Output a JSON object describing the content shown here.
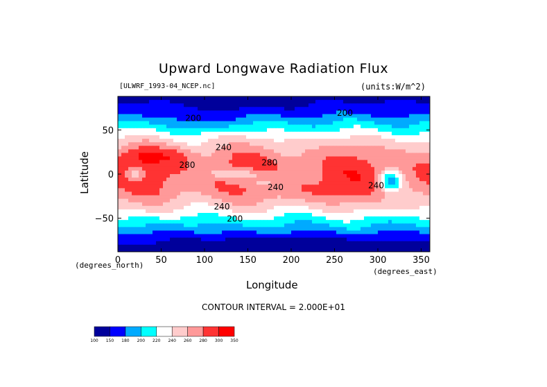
{
  "chart_data": {
    "type": "heatmap",
    "title": "Upward Longwave Radiation Flux",
    "subtitle_left": "[ULWRF_1993-04_NCEP.nc]",
    "subtitle_right": "(units:W/m^2)",
    "xlabel": "Longitude",
    "ylabel": "Latitude",
    "x_units_label": "(degrees_east)",
    "y_units_label": "(degrees_north)",
    "xlim": [
      0,
      360
    ],
    "ylim": [
      -90,
      90
    ],
    "x_ticks": [
      0,
      50,
      100,
      150,
      200,
      250,
      300,
      350
    ],
    "y_ticks": [
      50,
      0,
      -50
    ],
    "contour_interval_text": "CONTOUR INTERVAL = 2.000E+01",
    "contour_labels": [
      {
        "lon": 87,
        "lat": 60,
        "text": "200"
      },
      {
        "lon": 262,
        "lat": 66,
        "text": "200"
      },
      {
        "lon": 122,
        "lat": 27,
        "text": "240"
      },
      {
        "lon": 80,
        "lat": 7,
        "text": "280"
      },
      {
        "lon": 175,
        "lat": 10,
        "text": "280"
      },
      {
        "lon": 182,
        "lat": -18,
        "text": "240"
      },
      {
        "lon": 298,
        "lat": -16,
        "text": "240"
      },
      {
        "lon": 120,
        "lat": -40,
        "text": "240"
      },
      {
        "lon": 135,
        "lat": -54,
        "text": "200"
      }
    ],
    "levels": [
      100,
      150,
      180,
      200,
      220,
      240,
      260,
      280,
      300,
      350
    ],
    "colors": [
      "#00009b",
      "#0000ff",
      "#00aaff",
      "#00ffff",
      "#ffffff",
      "#ffcccc",
      "#ff9999",
      "#ff3333",
      "#ff0000"
    ],
    "colorbar_labels": [
      "100",
      "150",
      "180",
      "200",
      "220",
      "240",
      "260",
      "280",
      "300",
      "350"
    ]
  }
}
